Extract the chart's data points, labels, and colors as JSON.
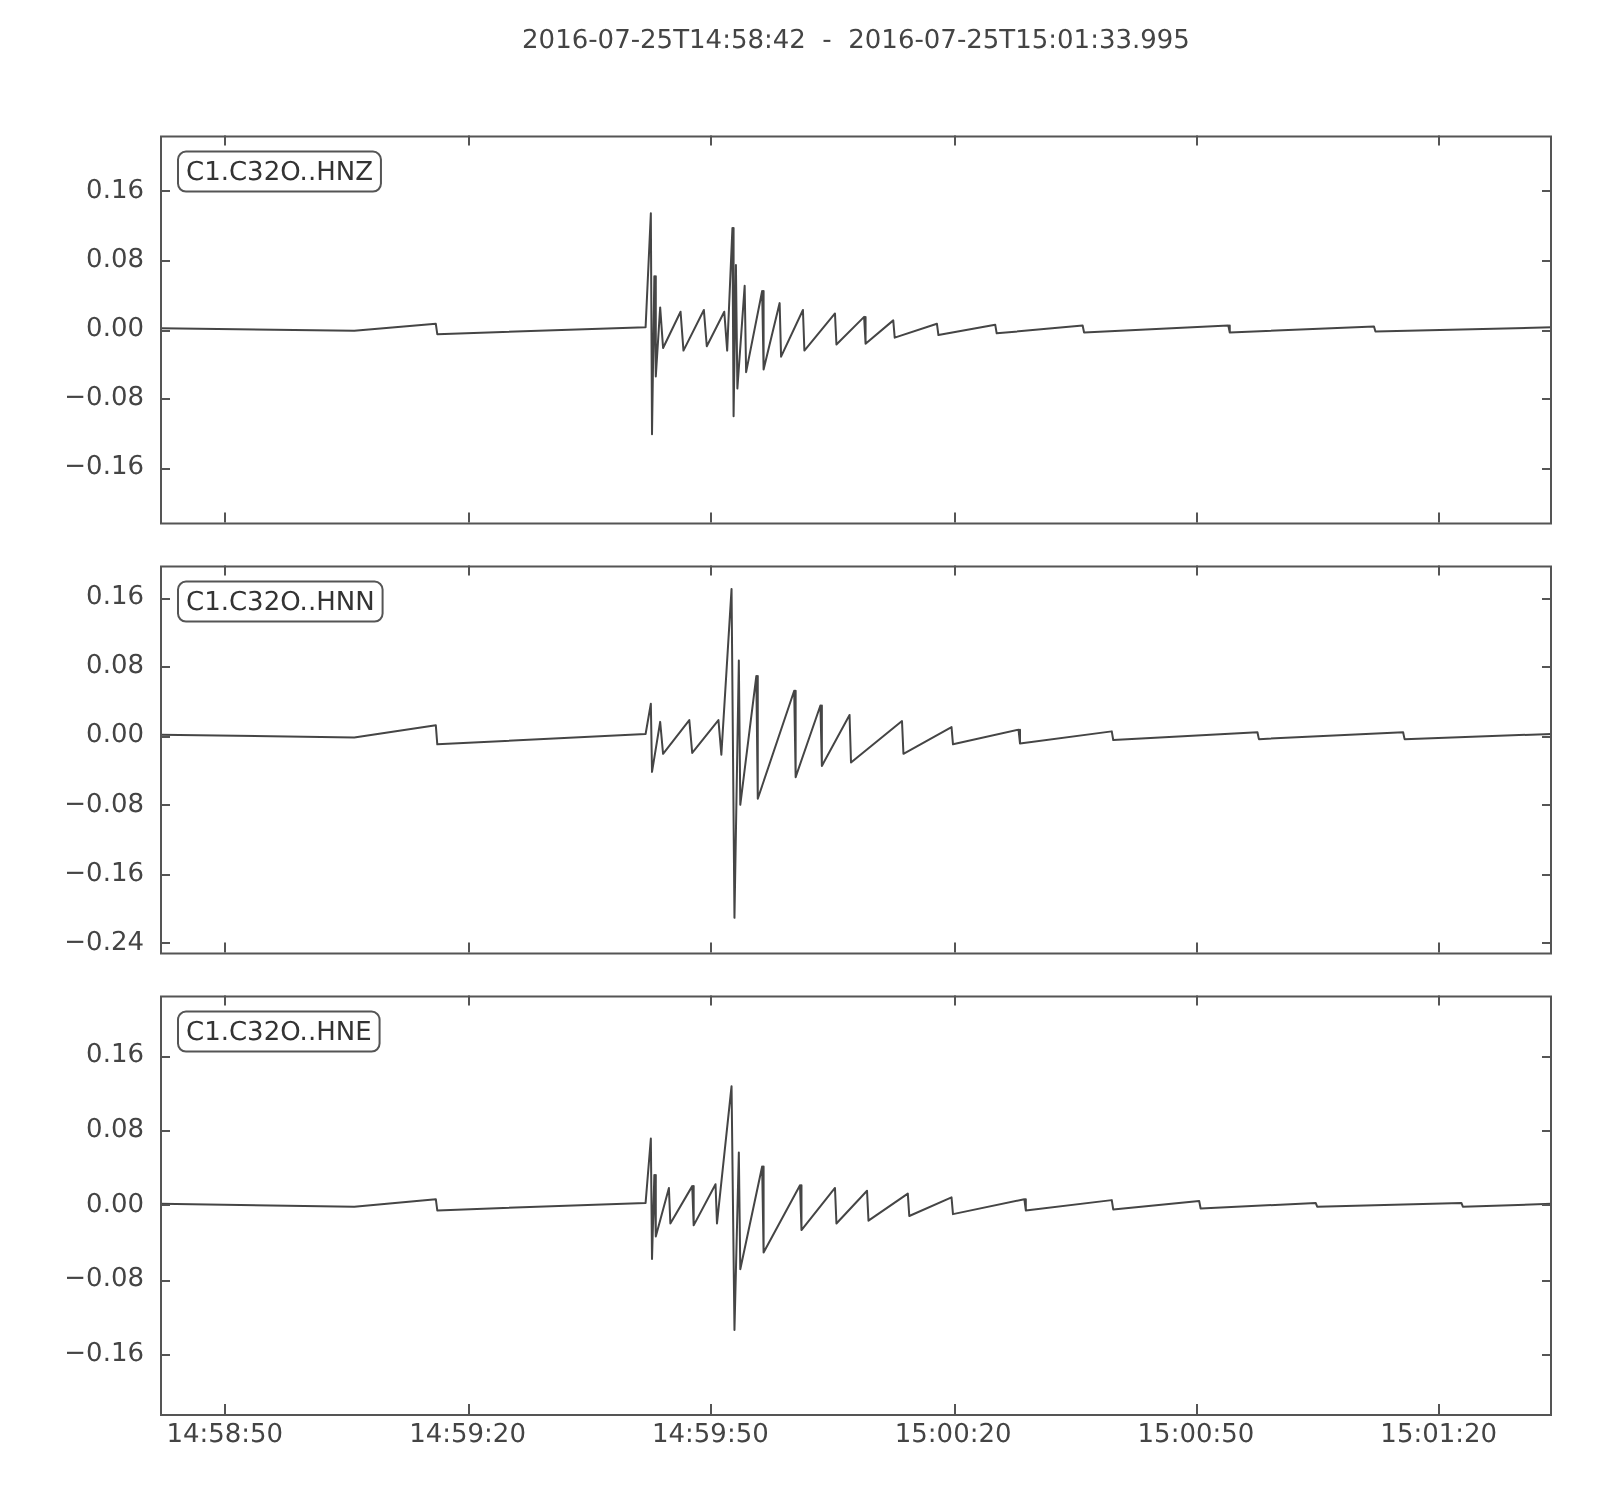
{
  "chart_data": [
    {
      "type": "line",
      "title": "2016-07-25T14:58:42  -  2016-07-25T15:01:33.995",
      "xlim": [
        14.978333,
        15.02611
      ],
      "xticks": [
        {
          "value": 14.980556,
          "label": null
        },
        {
          "value": 14.988889,
          "label": null
        },
        {
          "value": 14.997222,
          "label": null
        },
        {
          "value": 15.005556,
          "label": null
        },
        {
          "value": 15.013889,
          "label": null
        },
        {
          "value": 15.022222,
          "label": null
        }
      ],
      "ylim": [
        -0.224,
        0.224
      ],
      "yticks": [
        {
          "value": -0.16,
          "label": "−0.16"
        },
        {
          "value": -0.08,
          "label": "−0.08"
        },
        {
          "value": 0,
          "label": "0.00"
        },
        {
          "value": 0.08,
          "label": "0.08"
        },
        {
          "value": 0.16,
          "label": "0.16"
        }
      ],
      "tick_labels": "y",
      "x": [
        14.97834,
        14.985,
        14.9878,
        14.98785,
        14.995,
        14.99518,
        14.99522,
        14.9953,
        14.99535,
        14.9955,
        14.9956,
        14.9962,
        14.9963,
        14.997,
        14.9971,
        14.9977,
        14.9978,
        14.99798,
        14.99802,
        14.9981,
        14.99815,
        14.9984,
        14.99845,
        14.999,
        14.99905,
        14.9996,
        14.99965,
        15.0004,
        15.00045,
        15.0015,
        15.00155,
        15.0025,
        15.00255,
        15.0035,
        15.00355,
        15.005,
        15.00505,
        15.007,
        15.00705,
        15.01,
        15.01005,
        15.015,
        15.01505,
        15.02,
        15.02005,
        15.0261
      ],
      "series": [
        {
          "name": "C1.C32O..HNZ",
          "color": "#454545",
          "values": [
            0.001,
            -0.002,
            0.006,
            -0.006,
            0.002,
            0.134,
            -0.122,
            0.061,
            -0.055,
            0.025,
            -0.022,
            0.02,
            -0.025,
            0.022,
            -0.02,
            0.02,
            -0.025,
            0.117,
            -0.101,
            0.074,
            -0.069,
            0.05,
            -0.05,
            0.044,
            -0.047,
            0.03,
            -0.032,
            0.022,
            -0.025,
            0.018,
            -0.018,
            0.014,
            -0.017,
            0.01,
            -0.01,
            0.006,
            -0.007,
            0.005,
            -0.005,
            0.004,
            -0.004,
            0.004,
            -0.004,
            0.003,
            -0.003,
            0.002
          ]
        }
      ]
    },
    {
      "type": "line",
      "xlim": [
        14.978333,
        15.02611
      ],
      "xticks": [
        {
          "value": 14.980556,
          "label": null
        },
        {
          "value": 14.988889,
          "label": null
        },
        {
          "value": 14.997222,
          "label": null
        },
        {
          "value": 15.005556,
          "label": null
        },
        {
          "value": 15.013889,
          "label": null
        },
        {
          "value": 15.022222,
          "label": null
        }
      ],
      "ylim": [
        -0.251,
        0.197
      ],
      "yticks": [
        {
          "value": -0.24,
          "label": "−0.24"
        },
        {
          "value": -0.16,
          "label": "−0.16"
        },
        {
          "value": -0.08,
          "label": "−0.08"
        },
        {
          "value": 0,
          "label": "0.00"
        },
        {
          "value": 0.08,
          "label": "0.08"
        },
        {
          "value": 0.16,
          "label": "0.16"
        }
      ],
      "tick_labels": "y",
      "x": [
        14.97834,
        14.985,
        14.9878,
        14.98785,
        14.995,
        14.99518,
        14.99522,
        14.9955,
        14.9956,
        14.9965,
        14.9966,
        14.9975,
        14.9976,
        14.99795,
        14.99805,
        14.9982,
        14.99825,
        14.9988,
        14.99885,
        15.0001,
        15.00015,
        15.001,
        15.00105,
        15.002,
        15.00205,
        15.0038,
        15.00385,
        15.0055,
        15.00555,
        15.0078,
        15.00785,
        15.011,
        15.01105,
        15.016,
        15.01605,
        15.021,
        15.02105,
        15.0261
      ],
      "series": [
        {
          "name": "C1.C32O..HNN",
          "color": "#454545",
          "values": [
            0.001,
            -0.002,
            0.012,
            -0.01,
            0.002,
            0.037,
            -0.042,
            0.016,
            -0.021,
            0.018,
            -0.02,
            0.018,
            -0.022,
            0.17,
            -0.211,
            0.087,
            -0.08,
            0.069,
            -0.073,
            0.052,
            -0.048,
            0.035,
            -0.035,
            0.024,
            -0.031,
            0.017,
            -0.021,
            0.01,
            -0.01,
            0.007,
            -0.009,
            0.005,
            -0.005,
            0.004,
            -0.004,
            0.004,
            -0.004,
            0.002
          ]
        }
      ]
    },
    {
      "type": "line",
      "xlim": [
        14.978333,
        15.02611
      ],
      "xticks": [
        {
          "value": 14.980556,
          "label": "14:58:50"
        },
        {
          "value": 14.988889,
          "label": "14:59:20"
        },
        {
          "value": 14.997222,
          "label": "14:59:50"
        },
        {
          "value": 15.005556,
          "label": "15:00:20"
        },
        {
          "value": 15.013889,
          "label": "15:00:50"
        },
        {
          "value": 15.022222,
          "label": "15:01:20"
        }
      ],
      "ylim": [
        -0.224,
        0.224
      ],
      "yticks": [
        {
          "value": -0.16,
          "label": "−0.16"
        },
        {
          "value": -0.08,
          "label": "−0.08"
        },
        {
          "value": 0,
          "label": "0.00"
        },
        {
          "value": 0.08,
          "label": "0.08"
        },
        {
          "value": 0.16,
          "label": "0.16"
        }
      ],
      "x": [
        14.97834,
        14.985,
        14.9878,
        14.98785,
        14.995,
        14.99518,
        14.99522,
        14.9953,
        14.99535,
        14.9958,
        14.99585,
        14.9966,
        14.99665,
        14.9974,
        14.99745,
        14.99795,
        14.99805,
        14.9982,
        14.99825,
        14.999,
        14.99905,
        15.0003,
        15.00035,
        15.0015,
        15.00155,
        15.0026,
        15.00265,
        15.004,
        15.00405,
        15.0055,
        15.00555,
        15.008,
        15.00805,
        15.011,
        15.01105,
        15.014,
        15.01405,
        15.018,
        15.01805,
        15.023,
        15.02305,
        15.0261
      ],
      "series": [
        {
          "name": "C1.C32O..HNE",
          "color": "#454545",
          "values": [
            0.001,
            -0.002,
            0.006,
            -0.006,
            0.002,
            0.071,
            -0.058,
            0.032,
            -0.034,
            0.018,
            -0.02,
            0.02,
            -0.022,
            0.022,
            -0.02,
            0.127,
            -0.134,
            0.056,
            -0.069,
            0.041,
            -0.051,
            0.021,
            -0.027,
            0.018,
            -0.02,
            0.015,
            -0.017,
            0.012,
            -0.012,
            0.008,
            -0.01,
            0.006,
            -0.006,
            0.005,
            -0.005,
            0.004,
            -0.004,
            0.002,
            -0.002,
            0.002,
            -0.002,
            0.001
          ]
        }
      ]
    }
  ]
}
